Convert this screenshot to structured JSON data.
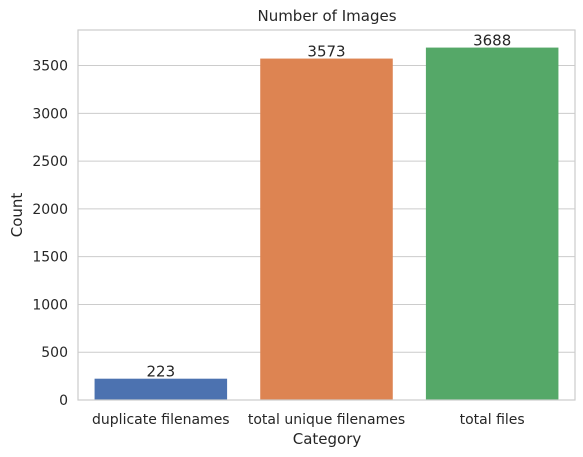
{
  "chart_data": {
    "type": "bar",
    "title": "Number of Images",
    "xlabel": "Category",
    "ylabel": "Count",
    "categories": [
      "duplicate filenames",
      "total unique filenames",
      "total files"
    ],
    "values": [
      223,
      3573,
      3688
    ],
    "data_labels": [
      "223",
      "3573",
      "3688"
    ],
    "colors": [
      "#4c72b0",
      "#dd8452",
      "#55a868"
    ],
    "ylim": [
      0,
      3872
    ],
    "yticks": [
      0,
      500,
      1000,
      1500,
      2000,
      2500,
      3000,
      3500
    ],
    "grid": true,
    "legend": "none"
  }
}
